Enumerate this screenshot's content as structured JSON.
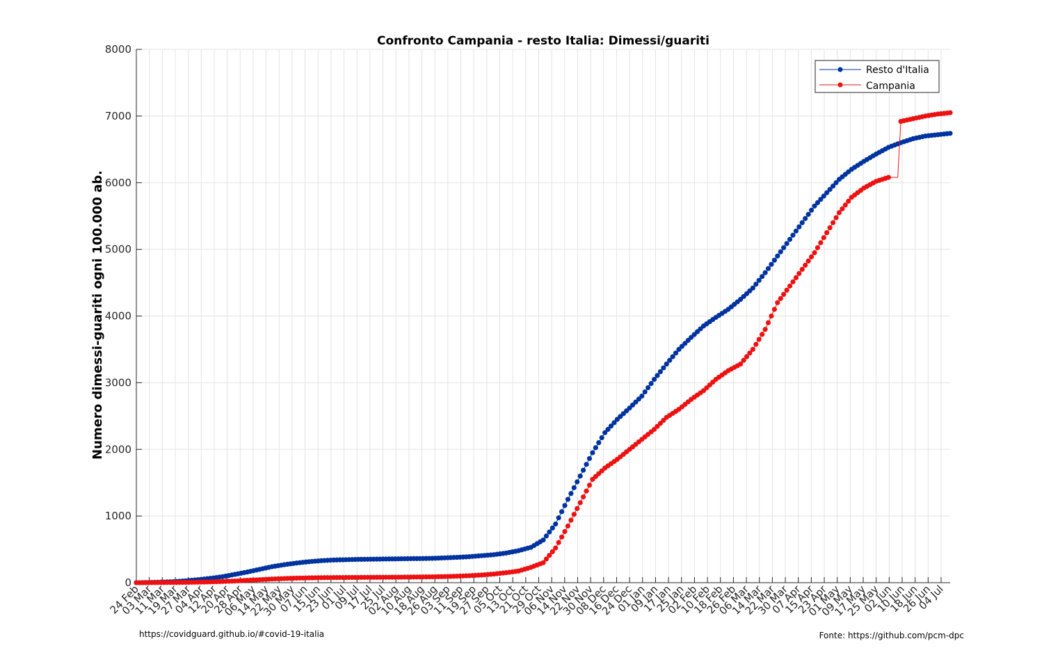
{
  "chart_data": {
    "type": "line",
    "title": "Confronto Campania - resto Italia: Dimessi/guariti",
    "xlabel": "",
    "ylabel": "Numero dimessi-guariti ogni 100.000 ab.",
    "ylim": [
      0,
      8000
    ],
    "yticks": [
      0,
      1000,
      2000,
      3000,
      4000,
      5000,
      6000,
      7000,
      8000
    ],
    "grid": true,
    "legend_position": "top-right",
    "x_tick_labels": [
      "24 Feb",
      "03 Mar",
      "11 Mar",
      "19 Mar",
      "27 Mar",
      "04 Apr",
      "12 Apr",
      "20 Apr",
      "28 Apr",
      "06 May",
      "14 May",
      "22 May",
      "30 May",
      "07 Jun",
      "15 Jun",
      "23 Jun",
      "01 Jul",
      "09 Jul",
      "17 Jul",
      "25 Jul",
      "02 Aug",
      "10 Aug",
      "18 Aug",
      "26 Aug",
      "03 Sep",
      "11 Sep",
      "19 Sep",
      "27 Sep",
      "05 Oct",
      "13 Oct",
      "21 Oct",
      "29 Oct",
      "06 Nov",
      "14 Nov",
      "22 Nov",
      "30 Nov",
      "08 Dec",
      "16 Dec",
      "24 Dec",
      "01 Jan",
      "09 Jan",
      "17 Jan",
      "25 Jan",
      "02 Feb",
      "10 Feb",
      "18 Feb",
      "26 Feb",
      "06 Mar",
      "14 Mar",
      "22 Mar",
      "30 Mar",
      "07 Apr",
      "15 Apr",
      "23 Apr",
      "01 May",
      "09 May",
      "17 May",
      "25 May",
      "02 Jun",
      "10 Jun",
      "18 Jun",
      "26 Jun",
      "04 Jul"
    ],
    "series": [
      {
        "name": "Resto d'Italia",
        "color": "#0033a0",
        "values": [
          0,
          3,
          8,
          15,
          28,
          45,
          65,
          90,
          125,
          160,
          200,
          240,
          270,
          295,
          315,
          330,
          340,
          345,
          350,
          352,
          355,
          357,
          360,
          362,
          365,
          372,
          380,
          390,
          405,
          420,
          445,
          480,
          530,
          640,
          880,
          1250,
          1600,
          1950,
          2250,
          2450,
          2620,
          2800,
          3050,
          3280,
          3500,
          3680,
          3850,
          3980,
          4100,
          4250,
          4420,
          4650,
          4900,
          5150,
          5400,
          5650,
          5850,
          6050,
          6200,
          6320,
          6430,
          6530,
          6600,
          6660,
          6700,
          6720,
          6740
        ]
      },
      {
        "name": "Campania",
        "color": "#ee1111",
        "values": [
          0,
          1,
          2,
          3,
          5,
          8,
          12,
          18,
          25,
          35,
          45,
          55,
          62,
          68,
          72,
          75,
          77,
          78,
          79,
          80,
          81,
          82,
          84,
          86,
          88,
          92,
          97,
          105,
          115,
          130,
          150,
          175,
          230,
          300,
          520,
          850,
          1200,
          1550,
          1720,
          1850,
          2000,
          2150,
          2300,
          2480,
          2600,
          2750,
          2880,
          3050,
          3180,
          3280,
          3500,
          3800,
          4200,
          4450,
          4700,
          4950,
          5250,
          5550,
          5780,
          5920,
          6020,
          6080,
          6920,
          6960,
          7000,
          7030,
          7050
        ]
      }
    ]
  },
  "footer": {
    "left": "https://covidguard.github.io/#covid-19-italia",
    "right": "Fonte: https://github.com/pcm-dpc"
  },
  "colors": {
    "resto": "#0033a0",
    "campania": "#ee1111",
    "grid": "#e3e3e3",
    "axis": "#262626"
  }
}
